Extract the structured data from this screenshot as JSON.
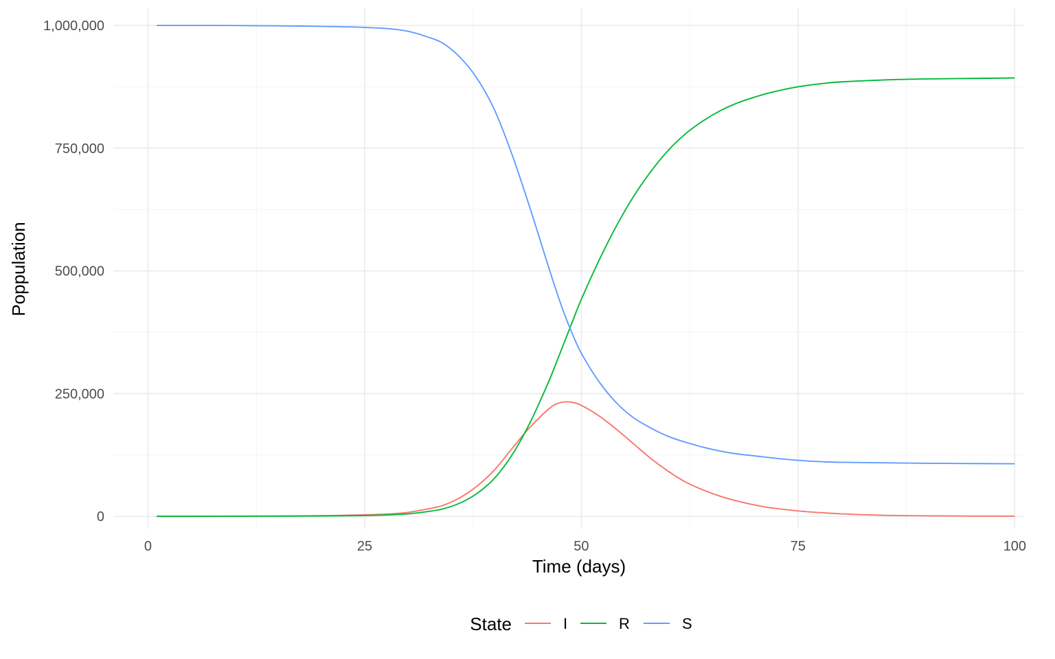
{
  "chart_data": {
    "type": "line",
    "xlabel": "Time (days)",
    "ylabel": "Poppulation",
    "xlim": [
      -4,
      101
    ],
    "ylim": [
      -25000,
      1035000
    ],
    "x_ticks": [
      0,
      25,
      50,
      75,
      100
    ],
    "x_tick_labels": [
      "0",
      "25",
      "50",
      "75",
      "100"
    ],
    "y_ticks": [
      0,
      250000,
      500000,
      750000,
      1000000
    ],
    "y_tick_labels": [
      "0",
      "250,000",
      "500,000",
      "750,000",
      "1,000,000"
    ],
    "grid": true,
    "legend": {
      "title": "State",
      "position": "bottom",
      "entries": [
        "I",
        "R",
        "S"
      ]
    },
    "x": [
      1,
      5,
      10,
      15,
      20,
      25,
      28,
      30,
      32,
      34,
      36,
      38,
      40,
      42,
      44,
      46,
      47,
      48,
      49,
      50,
      52,
      54,
      56,
      58,
      60,
      62,
      64,
      66,
      68,
      70,
      72,
      75,
      78,
      80,
      85,
      90,
      95,
      100
    ],
    "series": [
      {
        "name": "I",
        "color": "#F8766D",
        "values": [
          0,
          0,
          200,
          600,
          1200,
          3000,
          5000,
          8000,
          14000,
          22000,
          38000,
          62000,
          95000,
          138000,
          180000,
          215000,
          228000,
          233000,
          232000,
          226000,
          205000,
          178000,
          148000,
          118000,
          92000,
          70000,
          54000,
          41000,
          31000,
          23000,
          17000,
          11000,
          7000,
          5000,
          2000,
          1000,
          500,
          200
        ]
      },
      {
        "name": "R",
        "color": "#00BA38",
        "values": [
          0,
          0,
          100,
          300,
          700,
          1500,
          3000,
          5000,
          9000,
          15000,
          27000,
          47000,
          78000,
          125000,
          188000,
          265000,
          308000,
          353000,
          398000,
          442000,
          520000,
          590000,
          651000,
          702000,
          745000,
          779000,
          805000,
          826000,
          842000,
          854000,
          864000,
          875000,
          882000,
          885000,
          889000,
          891000,
          892000,
          893000
        ]
      },
      {
        "name": "S",
        "color": "#619CFF",
        "values": [
          1000000,
          1000000,
          999800,
          999100,
          998100,
          996000,
          993000,
          988000,
          978000,
          964000,
          935000,
          891000,
          827000,
          737000,
          632000,
          520000,
          465000,
          414000,
          370000,
          332000,
          275000,
          232000,
          201000,
          180000,
          163000,
          151000,
          141000,
          133000,
          127000,
          123000,
          119000,
          114000,
          111000,
          110000,
          109000,
          108000,
          107500,
          107000
        ]
      }
    ]
  }
}
